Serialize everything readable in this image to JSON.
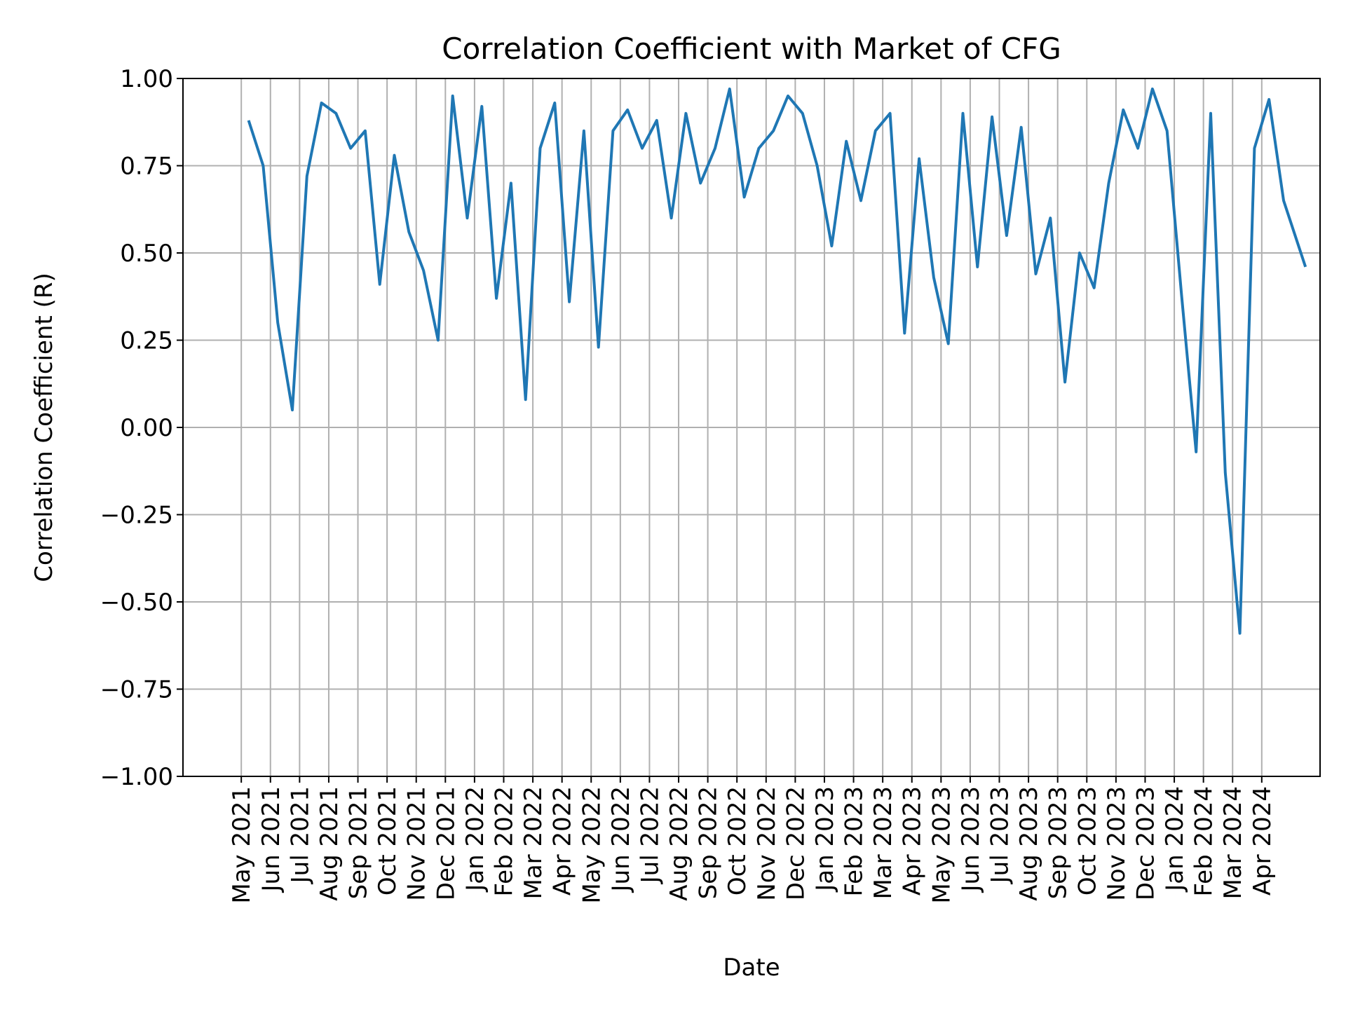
{
  "chart_data": {
    "type": "line",
    "title": "Correlation Coefficient with Market of CFG",
    "x_label": "Date",
    "y_label": "Correlation Coefficient (R)",
    "color": "#1f77b4",
    "grid": true,
    "xlim": [
      "2021-03",
      "2024-06"
    ],
    "ylim": [
      -1,
      1
    ],
    "yticks": [
      {
        "value": -1,
        "label": "−1.00"
      },
      {
        "value": -0.75,
        "label": "−0.75"
      },
      {
        "value": -0.5,
        "label": "−0.50"
      },
      {
        "value": -0.25,
        "label": "−0.25"
      },
      {
        "value": 0,
        "label": "0.00"
      },
      {
        "value": 0.25,
        "label": "0.25"
      },
      {
        "value": 0.5,
        "label": "0.50"
      },
      {
        "value": 0.75,
        "label": "0.75"
      },
      {
        "value": 1,
        "label": "1.00"
      }
    ],
    "xticks": [
      {
        "value": "2021-05",
        "label": "May 2021"
      },
      {
        "value": "2021-06",
        "label": "Jun 2021"
      },
      {
        "value": "2021-07",
        "label": "Jul 2021"
      },
      {
        "value": "2021-08",
        "label": "Aug 2021"
      },
      {
        "value": "2021-09",
        "label": "Sep 2021"
      },
      {
        "value": "2021-10",
        "label": "Oct 2021"
      },
      {
        "value": "2021-11",
        "label": "Nov 2021"
      },
      {
        "value": "2021-12",
        "label": "Dec 2021"
      },
      {
        "value": "2022-01",
        "label": "Jan 2022"
      },
      {
        "value": "2022-02",
        "label": "Feb 2022"
      },
      {
        "value": "2022-03",
        "label": "Mar 2022"
      },
      {
        "value": "2022-04",
        "label": "Apr 2022"
      },
      {
        "value": "2022-05",
        "label": "May 2022"
      },
      {
        "value": "2022-06",
        "label": "Jun 2022"
      },
      {
        "value": "2022-07",
        "label": "Jul 2022"
      },
      {
        "value": "2022-08",
        "label": "Aug 2022"
      },
      {
        "value": "2022-09",
        "label": "Sep 2022"
      },
      {
        "value": "2022-10",
        "label": "Oct 2022"
      },
      {
        "value": "2022-11",
        "label": "Nov 2022"
      },
      {
        "value": "2022-12",
        "label": "Dec 2022"
      },
      {
        "value": "2023-01",
        "label": "Jan 2023"
      },
      {
        "value": "2023-02",
        "label": "Feb 2023"
      },
      {
        "value": "2023-03",
        "label": "Mar 2023"
      },
      {
        "value": "2023-04",
        "label": "Apr 2023"
      },
      {
        "value": "2023-05",
        "label": "May 2023"
      },
      {
        "value": "2023-06",
        "label": "Jun 2023"
      },
      {
        "value": "2023-07",
        "label": "Jul 2023"
      },
      {
        "value": "2023-08",
        "label": "Aug 2023"
      },
      {
        "value": "2023-09",
        "label": "Sep 2023"
      },
      {
        "value": "2023-10",
        "label": "Oct 2023"
      },
      {
        "value": "2023-11",
        "label": "Nov 2023"
      },
      {
        "value": "2023-12",
        "label": "Dec 2023"
      },
      {
        "value": "2024-01",
        "label": "Jan 2024"
      },
      {
        "value": "2024-02",
        "label": "Feb 2024"
      },
      {
        "value": "2024-03",
        "label": "Mar 2024"
      },
      {
        "value": "2024-04",
        "label": "Apr 2024"
      }
    ],
    "x": [
      "2021-05",
      "2021-05",
      "2021-06",
      "2021-06",
      "2021-07",
      "2021-07",
      "2021-08",
      "2021-08",
      "2021-09",
      "2021-09",
      "2021-10",
      "2021-10",
      "2021-11",
      "2021-11",
      "2021-12",
      "2021-12",
      "2022-01",
      "2022-01",
      "2022-02",
      "2022-02",
      "2022-03",
      "2022-03",
      "2022-04",
      "2022-04",
      "2022-05",
      "2022-05",
      "2022-06",
      "2022-06",
      "2022-07",
      "2022-07",
      "2022-08",
      "2022-08",
      "2022-09",
      "2022-09",
      "2022-10",
      "2022-10",
      "2022-11",
      "2022-11",
      "2022-12",
      "2022-12",
      "2023-01",
      "2023-01",
      "2023-02",
      "2023-02",
      "2023-03",
      "2023-03",
      "2023-04",
      "2023-04",
      "2023-05",
      "2023-05",
      "2023-06",
      "2023-06",
      "2023-07",
      "2023-07",
      "2023-08",
      "2023-08",
      "2023-09",
      "2023-09",
      "2023-10",
      "2023-10",
      "2023-11",
      "2023-11",
      "2023-12",
      "2023-12",
      "2024-01",
      "2024-01",
      "2024-02",
      "2024-02",
      "2024-03",
      "2024-03",
      "2024-04",
      "2024-04",
      "2024-05"
    ],
    "values": [
      0.88,
      0.75,
      0.3,
      0.05,
      0.72,
      0.93,
      0.9,
      0.8,
      0.85,
      0.41,
      0.78,
      0.56,
      0.45,
      0.25,
      0.95,
      0.6,
      0.92,
      0.37,
      0.7,
      0.08,
      0.8,
      0.93,
      0.36,
      0.85,
      0.23,
      0.85,
      0.91,
      0.8,
      0.88,
      0.6,
      0.9,
      0.7,
      0.8,
      0.97,
      0.66,
      0.8,
      0.85,
      0.95,
      0.9,
      0.75,
      0.52,
      0.82,
      0.65,
      0.85,
      0.9,
      0.27,
      0.77,
      0.43,
      0.24,
      0.9,
      0.46,
      0.89,
      0.55,
      0.86,
      0.44,
      0.6,
      0.13,
      0.5,
      0.4,
      0.7,
      0.91,
      0.8,
      0.97,
      0.85,
      0.38,
      -0.07,
      0.9,
      -0.13,
      -0.59,
      0.8,
      0.94,
      0.65,
      0.46
    ]
  }
}
